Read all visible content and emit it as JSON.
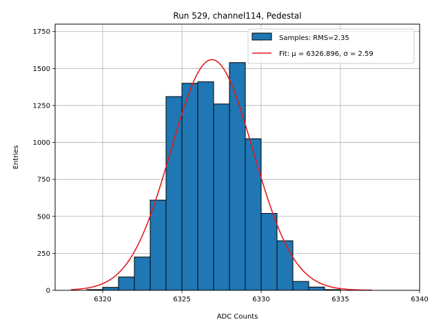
{
  "chart_data": {
    "type": "bar",
    "title": "Run 529, channel114, Pedestal",
    "xlabel": "ADC Counts",
    "ylabel": "Entries",
    "xlim": [
      6317,
      6340
    ],
    "ylim": [
      0,
      1800
    ],
    "xticks": [
      6320,
      6325,
      6330,
      6335,
      6340
    ],
    "yticks": [
      0,
      250,
      500,
      750,
      1000,
      1250,
      1500,
      1750
    ],
    "grid": true,
    "legend_position": "top-right",
    "bin_edges": [
      6318,
      6319,
      6320,
      6321,
      6322,
      6323,
      6324,
      6325,
      6326,
      6327,
      6328,
      6329,
      6330,
      6331,
      6332,
      6333,
      6334,
      6335,
      6336,
      6337,
      6338,
      6339
    ],
    "series": [
      {
        "name": "Samples: RMS=2.35",
        "kind": "histogram",
        "values": [
          0,
          5,
          20,
          90,
          225,
          610,
          1310,
          1400,
          1410,
          1260,
          1540,
          1025,
          520,
          335,
          60,
          22,
          5,
          0,
          0,
          0,
          0
        ],
        "fill_color": "#1f77b4",
        "edge_color": "#000000"
      },
      {
        "name": "Fit: μ = 6326.896, σ = 2.59",
        "kind": "gaussian_fit",
        "mu": 6326.896,
        "sigma": 2.59,
        "amplitude": 1560,
        "x_range": [
          6318,
          6337
        ],
        "color": "#e31a1c"
      }
    ]
  }
}
